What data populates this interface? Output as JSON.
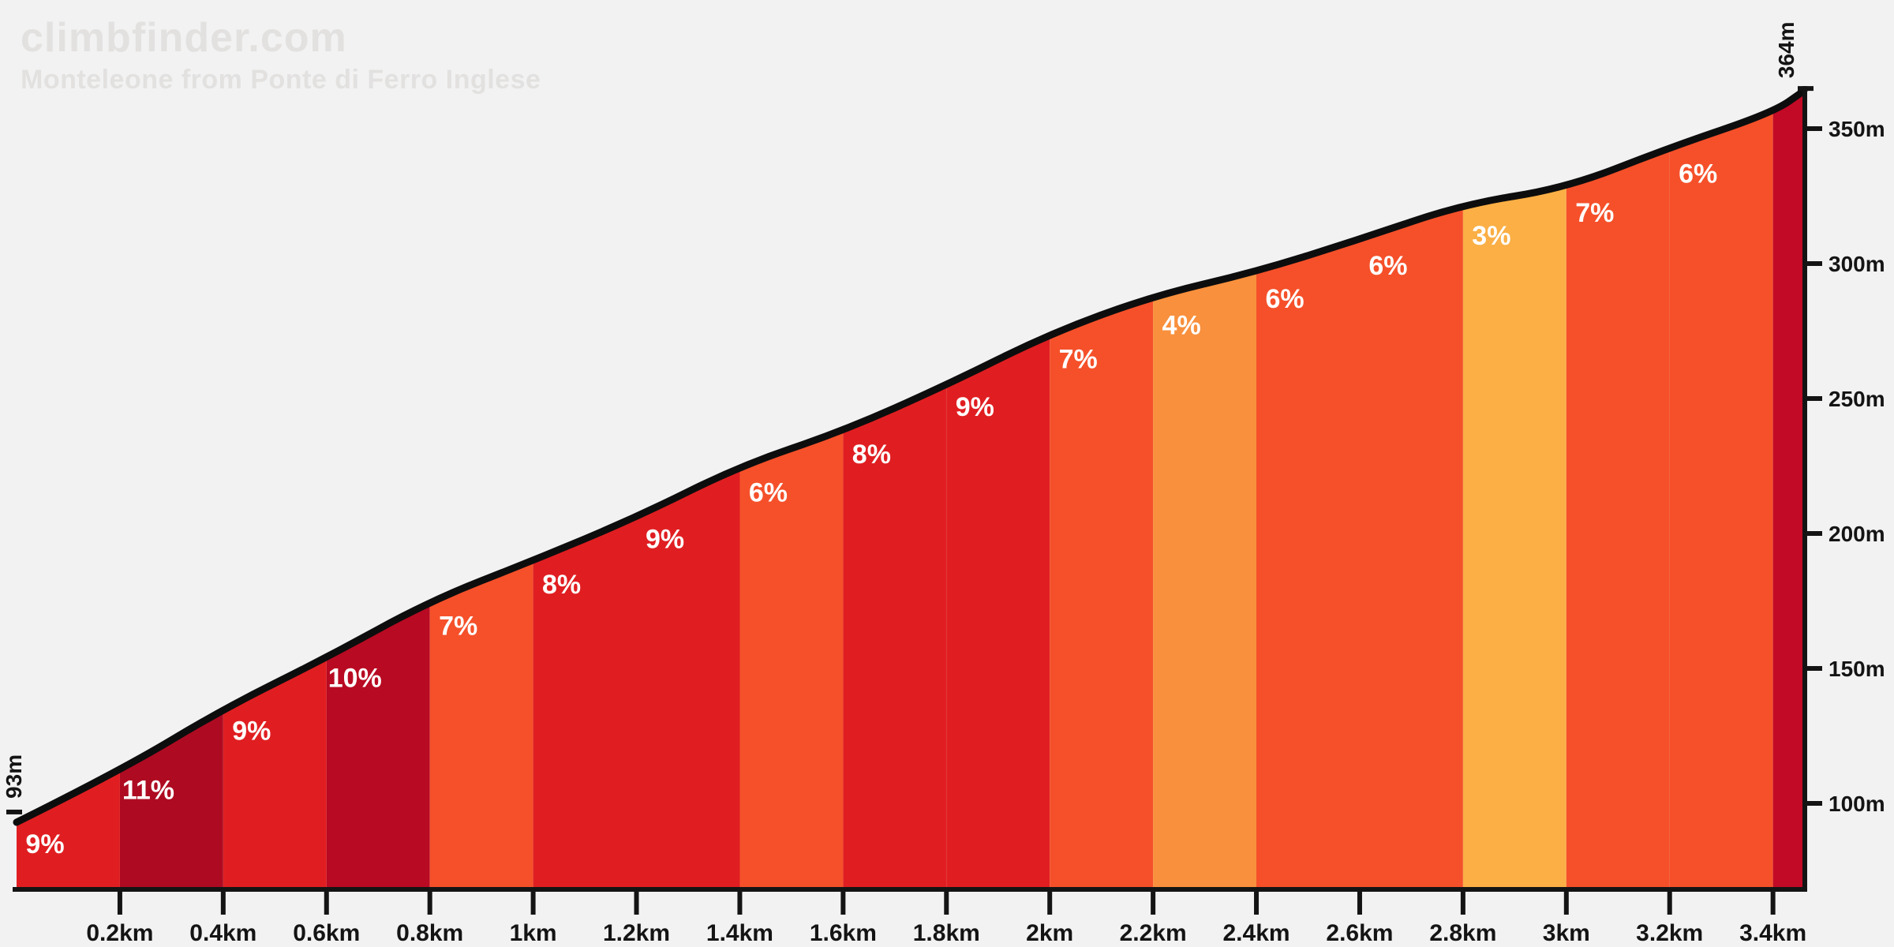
{
  "header": {
    "brand": "climbfinder.com",
    "subtitle": "Monteleone from Ponte di Ferro Inglese"
  },
  "colors": {
    "background": "#F2F2F2",
    "brand_text": "#E2E1E0",
    "axis": "#141414",
    "profile_line": "#0D0D0D",
    "gradient_label_text": "#FFFFFF",
    "band_3pct": "#FBAF45",
    "band_4pct": "#F9903D",
    "band_6_7pct": "#F5502A",
    "band_8_9pct": "#E01E21",
    "band_10_11pct": "#B30B23",
    "band_final": "#C20A26"
  },
  "chart_data": {
    "type": "area",
    "title": "Monteleone from Ponte di Ferro Inglese",
    "x_unit": "km",
    "y_unit": "m",
    "start_elevation_m": 93,
    "end_elevation_m": 364,
    "start_label": "93m",
    "end_label": "364m",
    "total_km": 3.46,
    "grid": false,
    "legend": false,
    "x_ticks": [
      {
        "km": 0.2,
        "label": "0.2km"
      },
      {
        "km": 0.4,
        "label": "0.4km"
      },
      {
        "km": 0.6,
        "label": "0.6km"
      },
      {
        "km": 0.8,
        "label": "0.8km"
      },
      {
        "km": 1.0,
        "label": "1km"
      },
      {
        "km": 1.2,
        "label": "1.2km"
      },
      {
        "km": 1.4,
        "label": "1.4km"
      },
      {
        "km": 1.6,
        "label": "1.6km"
      },
      {
        "km": 1.8,
        "label": "1.8km"
      },
      {
        "km": 2.0,
        "label": "2km"
      },
      {
        "km": 2.2,
        "label": "2.2km"
      },
      {
        "km": 2.4,
        "label": "2.4km"
      },
      {
        "km": 2.6,
        "label": "2.6km"
      },
      {
        "km": 2.8,
        "label": "2.8km"
      },
      {
        "km": 3.0,
        "label": "3km"
      },
      {
        "km": 3.2,
        "label": "3.2km"
      },
      {
        "km": 3.4,
        "label": "3.4km"
      }
    ],
    "y_ticks": [
      {
        "m": 350,
        "label": "350m"
      },
      {
        "m": 300,
        "label": "300m"
      },
      {
        "m": 250,
        "label": "250m"
      },
      {
        "m": 200,
        "label": "200m"
      },
      {
        "m": 150,
        "label": "150m"
      },
      {
        "m": 100,
        "label": "100m"
      }
    ],
    "profile_points": [
      {
        "km": 0.0,
        "elev": 93
      },
      {
        "km": 0.2,
        "elev": 112
      },
      {
        "km": 0.4,
        "elev": 135
      },
      {
        "km": 0.6,
        "elev": 154
      },
      {
        "km": 0.8,
        "elev": 175
      },
      {
        "km": 1.0,
        "elev": 190
      },
      {
        "km": 1.2,
        "elev": 206
      },
      {
        "km": 1.4,
        "elev": 225
      },
      {
        "km": 1.6,
        "elev": 238
      },
      {
        "km": 1.8,
        "elev": 255
      },
      {
        "km": 2.0,
        "elev": 274
      },
      {
        "km": 2.2,
        "elev": 288
      },
      {
        "km": 2.4,
        "elev": 297
      },
      {
        "km": 2.6,
        "elev": 309
      },
      {
        "km": 2.8,
        "elev": 322
      },
      {
        "km": 3.0,
        "elev": 328
      },
      {
        "km": 3.2,
        "elev": 343
      },
      {
        "km": 3.4,
        "elev": 356
      },
      {
        "km": 3.46,
        "elev": 364
      }
    ],
    "segments": [
      {
        "from_km": 0.0,
        "to_km": 0.2,
        "gradient": "9%",
        "color": "#E01E21"
      },
      {
        "from_km": 0.2,
        "to_km": 0.4,
        "gradient": "11%",
        "color": "#AE0B22"
      },
      {
        "from_km": 0.4,
        "to_km": 0.6,
        "gradient": "9%",
        "color": "#E01E21"
      },
      {
        "from_km": 0.6,
        "to_km": 0.8,
        "gradient": "10%",
        "color": "#B80A22"
      },
      {
        "from_km": 0.8,
        "to_km": 1.0,
        "gradient": "7%",
        "color": "#F5502A"
      },
      {
        "from_km": 1.0,
        "to_km": 1.2,
        "gradient": "8%",
        "color": "#E01E21"
      },
      {
        "from_km": 1.2,
        "to_km": 1.4,
        "gradient": "9%",
        "color": "#E01E21"
      },
      {
        "from_km": 1.4,
        "to_km": 1.6,
        "gradient": "6%",
        "color": "#F5502A"
      },
      {
        "from_km": 1.6,
        "to_km": 1.8,
        "gradient": "8%",
        "color": "#E01E21"
      },
      {
        "from_km": 1.8,
        "to_km": 2.0,
        "gradient": "9%",
        "color": "#E01E21"
      },
      {
        "from_km": 2.0,
        "to_km": 2.2,
        "gradient": "7%",
        "color": "#F5502A"
      },
      {
        "from_km": 2.2,
        "to_km": 2.4,
        "gradient": "4%",
        "color": "#F9903D"
      },
      {
        "from_km": 2.4,
        "to_km": 2.6,
        "gradient": "6%",
        "color": "#F5502A"
      },
      {
        "from_km": 2.6,
        "to_km": 2.8,
        "gradient": "6%",
        "color": "#F5502A"
      },
      {
        "from_km": 2.8,
        "to_km": 3.0,
        "gradient": "3%",
        "color": "#FBAF45"
      },
      {
        "from_km": 3.0,
        "to_km": 3.2,
        "gradient": "7%",
        "color": "#F5502A"
      },
      {
        "from_km": 3.2,
        "to_km": 3.4,
        "gradient": "6%",
        "color": "#F5502A"
      },
      {
        "from_km": 3.4,
        "to_km": 3.46,
        "gradient": "",
        "color": "#C20A26"
      }
    ]
  }
}
